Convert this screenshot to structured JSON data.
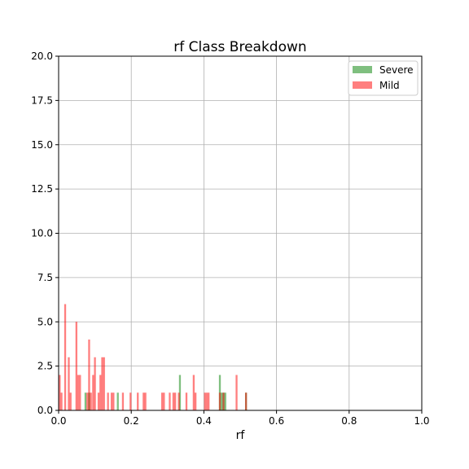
{
  "chart_data": {
    "type": "bar",
    "title": "rf Class Breakdown",
    "xlabel": "rf",
    "ylabel": "",
    "xlim": [
      0,
      1
    ],
    "ylim": [
      0,
      20
    ],
    "xticks": [
      "0.0",
      "0.2",
      "0.4",
      "0.6",
      "0.8",
      "1.0"
    ],
    "yticks": [
      "0.0",
      "2.5",
      "5.0",
      "7.5",
      "10.0",
      "12.5",
      "15.0",
      "17.5",
      "20.0"
    ],
    "grid": true,
    "legend_position": "top-right",
    "bin_width": 0.0052,
    "series": [
      {
        "name": "Severe",
        "color": "#008000",
        "opacity": 0.5,
        "x": [
          0.074,
          0.084,
          0.163,
          0.334,
          0.444,
          0.449,
          0.454,
          0.459,
          0.516
        ],
        "values": [
          1,
          1,
          1,
          2,
          2,
          1,
          1,
          1,
          1
        ]
      },
      {
        "name": "Mild",
        "color": "#ff0000",
        "opacity": 0.5,
        "x": [
          0.003,
          0.008,
          0.018,
          0.028,
          0.033,
          0.049,
          0.054,
          0.059,
          0.079,
          0.084,
          0.089,
          0.095,
          0.1,
          0.11,
          0.115,
          0.12,
          0.125,
          0.136,
          0.146,
          0.151,
          0.177,
          0.198,
          0.218,
          0.234,
          0.239,
          0.285,
          0.29,
          0.306,
          0.316,
          0.321,
          0.331,
          0.352,
          0.372,
          0.377,
          0.403,
          0.408,
          0.413,
          0.444,
          0.454,
          0.49,
          0.516
        ],
        "values": [
          2,
          1,
          6,
          3,
          1,
          5,
          2,
          2,
          1,
          4,
          1,
          2,
          3,
          1,
          2,
          3,
          3,
          1,
          1,
          1,
          1,
          1,
          1,
          1,
          1,
          1,
          1,
          1,
          1,
          1,
          1,
          1,
          2,
          1,
          1,
          1,
          1,
          1,
          1,
          2,
          1
        ]
      }
    ]
  }
}
